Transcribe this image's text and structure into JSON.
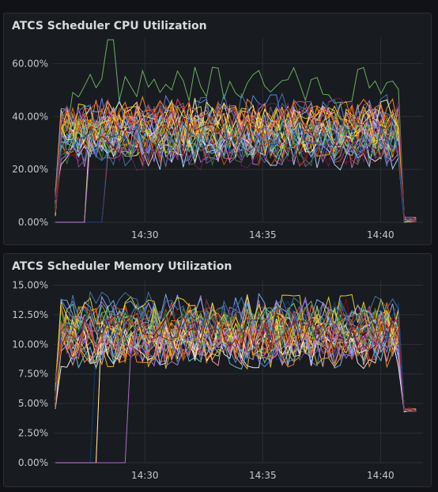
{
  "panels": [
    {
      "title": "ATCS Scheduler CPU Utilization",
      "chart_data": {
        "type": "line",
        "title": "ATCS Scheduler CPU Utilization",
        "x_ticks": [
          "14:30",
          "14:35",
          "14:40"
        ],
        "x_tick_minutes": [
          30,
          35,
          40
        ],
        "xlim_minutes": [
          26.1,
          41.8
        ],
        "y_ticks": [
          "0.00%",
          "20.00%",
          "40.00%",
          "60.00%"
        ],
        "y_tick_values": [
          0,
          20,
          40,
          60
        ],
        "ylim": [
          0,
          70
        ],
        "grid": true,
        "series_count": 40,
        "approx_series": {
          "highest_peak_series": {
            "plateau_percent_range": [
              45,
              70
            ],
            "peak_percent": 69
          },
          "typical_band_percent": [
            20,
            48
          ],
          "start_minute": 26.2,
          "end_minute": 41.5,
          "ramp_down_to": 0
        }
      }
    },
    {
      "title": "ATCS Scheduler Memory Utilization",
      "chart_data": {
        "type": "line",
        "title": "ATCS Scheduler Memory Utilization",
        "x_ticks": [
          "14:30",
          "14:35",
          "14:40"
        ],
        "x_tick_minutes": [
          30,
          35,
          40
        ],
        "xlim_minutes": [
          26.1,
          41.8
        ],
        "y_ticks": [
          "0.00%",
          "2.50%",
          "5.00%",
          "7.50%",
          "10.00%",
          "12.50%",
          "15.00%"
        ],
        "y_tick_values": [
          0,
          2.5,
          5,
          7.5,
          10,
          12.5,
          15
        ],
        "ylim": [
          0,
          15.5
        ],
        "grid": true,
        "series_count": 40,
        "approx_series": {
          "typical_band_percent": [
            8,
            14.3
          ],
          "start_minute": 26.2,
          "end_minute": 41.5,
          "ramp_down_to": 4.3
        }
      }
    }
  ],
  "colors": {
    "background": "#111217",
    "panel": "#181b1f",
    "grid": "#2c2f35",
    "series_palette": [
      "#73bf69",
      "#f2cc0c",
      "#8ab8ff",
      "#ff780a",
      "#f2495c",
      "#5794f2",
      "#b877d9",
      "#705da0",
      "#37872d",
      "#fade2a",
      "#447ebc",
      "#c15c17",
      "#890f02",
      "#0a437c",
      "#6d1f62",
      "#e0b400",
      "#96d98d",
      "#ffcb7d",
      "#c0d8ff",
      "#ffa6b0",
      "#ffffff",
      "#ff9830",
      "#fff899",
      "#ca95e5",
      "#6ed0e0"
    ]
  }
}
